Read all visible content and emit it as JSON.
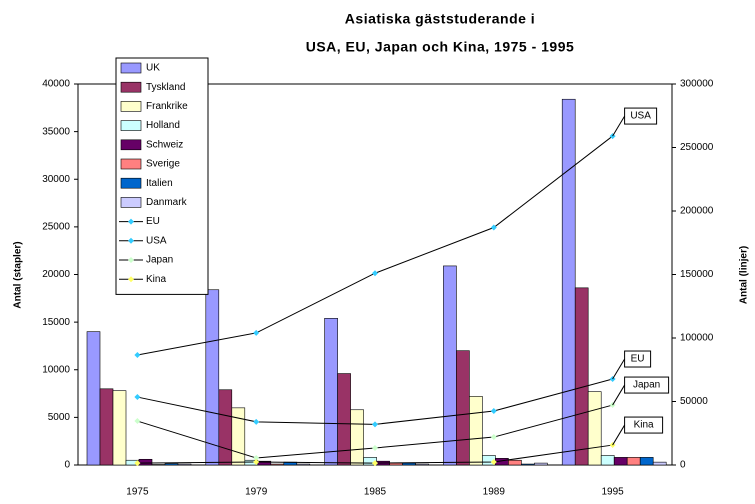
{
  "chart_data": {
    "type": "bar_line",
    "title": [
      "Asiatiska gäststuderande i",
      "USA, EU, Japan och Kina, 1975 - 1995"
    ],
    "y_label": "Antal (stapler)",
    "y2_label": "Antal (linjer)",
    "categories": [
      "1975",
      "1979",
      "1985",
      "1989",
      "1995"
    ],
    "series": [
      {
        "name": "UK",
        "color": "#9999ff",
        "kind": "bar",
        "values": [
          14000,
          18400,
          15400,
          20900,
          38400
        ]
      },
      {
        "name": "Tyskland",
        "color": "#993366",
        "kind": "bar",
        "values": [
          8000,
          7900,
          9600,
          12000,
          18600
        ]
      },
      {
        "name": "Frankrike",
        "color": "#ffffcc",
        "kind": "bar",
        "values": [
          7800,
          6000,
          5800,
          7200,
          7700
        ]
      },
      {
        "name": "Holland",
        "color": "#ccffff",
        "kind": "bar",
        "values": [
          500,
          500,
          800,
          1000,
          1000
        ]
      },
      {
        "name": "Schweiz",
        "color": "#660066",
        "kind": "bar",
        "values": [
          600,
          400,
          400,
          700,
          800
        ]
      },
      {
        "name": "Sverige",
        "color": "#ff8080",
        "kind": "bar",
        "values": [
          50,
          100,
          200,
          500,
          800
        ]
      },
      {
        "name": "Italien",
        "color": "#0066cc",
        "kind": "bar",
        "values": [
          150,
          300,
          200,
          100,
          800
        ]
      },
      {
        "name": "Danmark",
        "color": "#ccccff",
        "kind": "bar",
        "values": [
          100,
          100,
          100,
          200,
          300
        ]
      },
      {
        "name": "EU",
        "color": "#33ccff",
        "kind": "line",
        "axis": "y2",
        "values": [
          53500,
          34000,
          32000,
          42500,
          67700
        ]
      },
      {
        "name": "USA",
        "color": "#33ccff",
        "kind": "line",
        "axis": "y2",
        "values": [
          86600,
          104000,
          151000,
          187000,
          259000
        ]
      },
      {
        "name": "Japan",
        "color": "#ccffcc",
        "kind": "line",
        "axis": "y2",
        "values": [
          34600,
          5500,
          13400,
          22000,
          47200
        ]
      },
      {
        "name": "Kina",
        "color": "#ffff66",
        "kind": "line",
        "axis": "y2",
        "values": [
          1500,
          2400,
          1500,
          2400,
          15700
        ]
      }
    ],
    "line_color": "#000000",
    "ylim": [
      0,
      40000
    ],
    "yticks": [
      0,
      5000,
      10000,
      15000,
      20000,
      25000,
      30000,
      35000,
      40000
    ],
    "y2lim": [
      0,
      300000
    ],
    "y2ticks": [
      0,
      50000,
      100000,
      150000,
      200000,
      250000,
      300000
    ],
    "grid": false,
    "legend": "top-left"
  }
}
